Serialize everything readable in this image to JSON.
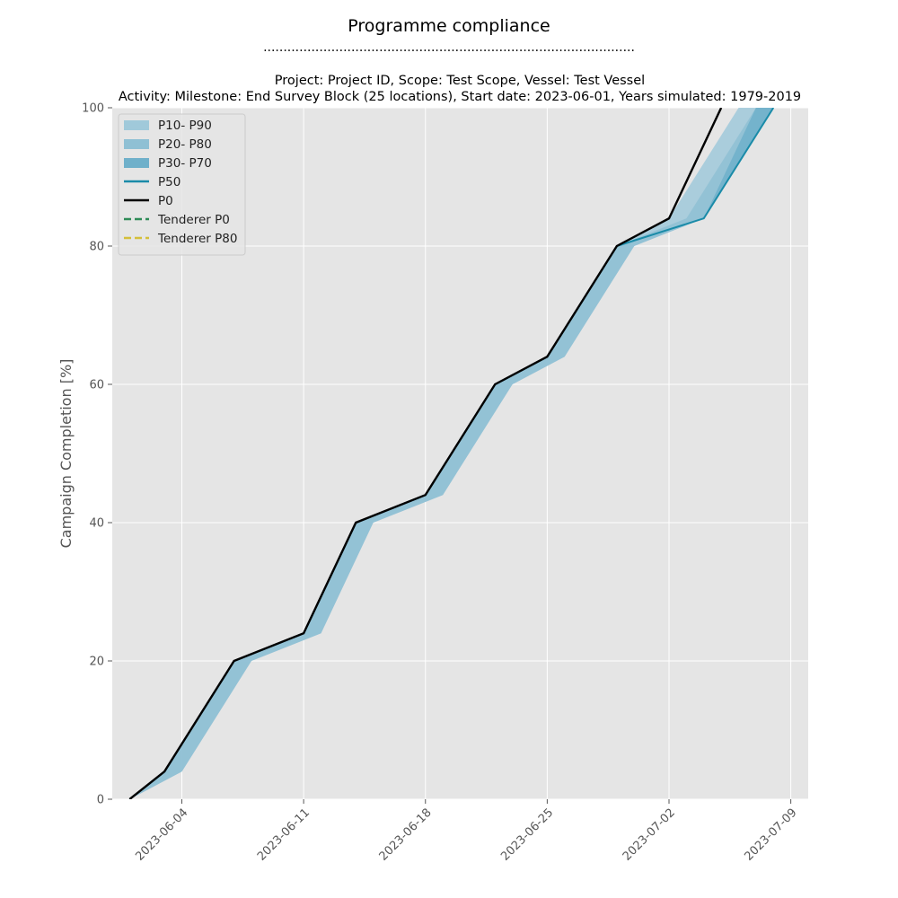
{
  "chart_data": {
    "type": "area",
    "title": "Programme compliance",
    "title_rule": ".............................................................................................",
    "subtitle_line1": "Project: Project ID, Scope: Test Scope, Vessel: Test Vessel",
    "subtitle_line2": "Activity: Milestone: End Survey Block (25 locations), Start date: 2023-06-01, Years simulated: 1979-2019",
    "xlabel": "",
    "ylabel": "Campaign Completion [%]",
    "x_type": "date",
    "xlim": [
      "2023-05-31",
      "2023-07-10"
    ],
    "ylim": [
      0,
      100
    ],
    "xticks": [
      "2023-06-04",
      "2023-06-11",
      "2023-06-18",
      "2023-06-25",
      "2023-07-02",
      "2023-07-09"
    ],
    "yticks": [
      0,
      20,
      40,
      60,
      80,
      100
    ],
    "grid": true,
    "legend_position": "top-left",
    "background": "#e5e5e5",
    "bands": [
      {
        "name": "P10- P90",
        "color": "#a0c9da",
        "lower": [
          [
            "2023-06-01",
            0
          ],
          [
            "2023-06-04",
            4
          ],
          [
            "2023-06-08",
            20
          ],
          [
            "2023-06-12",
            24
          ],
          [
            "2023-06-15",
            40
          ],
          [
            "2023-06-19",
            44
          ],
          [
            "2023-06-23",
            60
          ],
          [
            "2023-06-26",
            64
          ],
          [
            "2023-06-30",
            80
          ],
          [
            "2023-07-04",
            84
          ],
          [
            "2023-07-08",
            100
          ]
        ],
        "upper": [
          [
            "2023-06-01",
            0
          ],
          [
            "2023-06-03",
            4
          ],
          [
            "2023-06-07",
            20
          ],
          [
            "2023-06-11",
            24
          ],
          [
            "2023-06-14",
            40
          ],
          [
            "2023-06-18",
            44
          ],
          [
            "2023-06-22",
            60
          ],
          [
            "2023-06-25",
            64
          ],
          [
            "2023-06-29",
            80
          ],
          [
            "2023-07-02",
            84
          ],
          [
            "2023-07-06",
            100
          ]
        ]
      },
      {
        "name": "P20- P80",
        "color": "#8fc0d4",
        "lower": [
          [
            "2023-06-01",
            0
          ],
          [
            "2023-06-04",
            4
          ],
          [
            "2023-06-08",
            20
          ],
          [
            "2023-06-12",
            24
          ],
          [
            "2023-06-15",
            40
          ],
          [
            "2023-06-19",
            44
          ],
          [
            "2023-06-23",
            60
          ],
          [
            "2023-06-26",
            64
          ],
          [
            "2023-06-30",
            80
          ],
          [
            "2023-07-04",
            84
          ],
          [
            "2023-07-08",
            100
          ]
        ],
        "upper": [
          [
            "2023-06-01",
            0
          ],
          [
            "2023-06-03",
            4
          ],
          [
            "2023-06-07",
            20
          ],
          [
            "2023-06-11",
            24
          ],
          [
            "2023-06-14",
            40
          ],
          [
            "2023-06-18",
            44
          ],
          [
            "2023-06-22",
            60
          ],
          [
            "2023-06-25",
            64
          ],
          [
            "2023-06-29",
            80
          ],
          [
            "2023-07-03",
            84
          ],
          [
            "2023-07-07",
            100
          ]
        ]
      },
      {
        "name": "P30- P70",
        "color": "#6fb0ca",
        "lower": [
          [
            "2023-06-01",
            0
          ],
          [
            "2023-06-04",
            4
          ],
          [
            "2023-06-08",
            20
          ],
          [
            "2023-06-12",
            24
          ],
          [
            "2023-06-15",
            40
          ],
          [
            "2023-06-19",
            44
          ],
          [
            "2023-06-23",
            60
          ],
          [
            "2023-06-26",
            64
          ],
          [
            "2023-06-30",
            80
          ],
          [
            "2023-07-04",
            84
          ],
          [
            "2023-07-08",
            100
          ]
        ],
        "upper": [
          [
            "2023-06-01",
            0
          ],
          [
            "2023-06-04",
            4
          ],
          [
            "2023-06-08",
            20
          ],
          [
            "2023-06-12",
            24
          ],
          [
            "2023-06-15",
            40
          ],
          [
            "2023-06-19",
            44
          ],
          [
            "2023-06-23",
            60
          ],
          [
            "2023-06-26",
            64
          ],
          [
            "2023-06-30",
            80
          ],
          [
            "2023-07-04",
            84
          ],
          [
            "2023-07-07",
            100
          ]
        ]
      }
    ],
    "series": [
      {
        "name": "P50",
        "color": "#1a8ba8",
        "dashed": false,
        "points": [
          [
            "2023-06-01",
            0
          ],
          [
            "2023-06-03",
            4
          ],
          [
            "2023-06-07",
            20
          ],
          [
            "2023-06-11",
            24
          ],
          [
            "2023-06-14",
            40
          ],
          [
            "2023-06-18",
            44
          ],
          [
            "2023-06-22",
            60
          ],
          [
            "2023-06-25",
            64
          ],
          [
            "2023-06-29",
            80
          ],
          [
            "2023-07-04",
            84
          ],
          [
            "2023-07-08",
            100
          ]
        ]
      },
      {
        "name": "P0",
        "color": "#000000",
        "dashed": false,
        "points": [
          [
            "2023-06-01",
            0
          ],
          [
            "2023-06-03",
            4
          ],
          [
            "2023-06-07",
            20
          ],
          [
            "2023-06-11",
            24
          ],
          [
            "2023-06-14",
            40
          ],
          [
            "2023-06-18",
            44
          ],
          [
            "2023-06-22",
            60
          ],
          [
            "2023-06-25",
            64
          ],
          [
            "2023-06-29",
            80
          ],
          [
            "2023-07-02",
            84
          ],
          [
            "2023-07-05",
            100
          ]
        ]
      },
      {
        "name": "Tenderer P0",
        "color": "#2e8b57",
        "dashed": true,
        "points": []
      },
      {
        "name": "Tenderer P80",
        "color": "#d4bf3a",
        "dashed": true,
        "points": []
      }
    ]
  }
}
